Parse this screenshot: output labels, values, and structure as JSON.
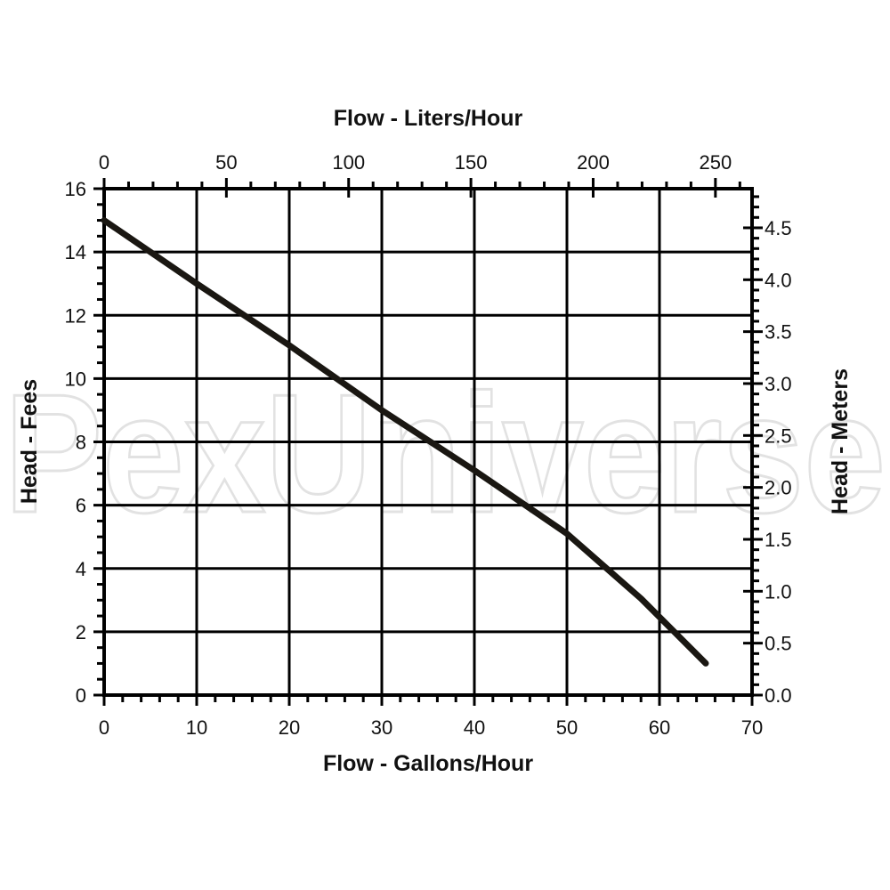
{
  "watermark": "PexUniverse",
  "chart_data": {
    "type": "line",
    "xlabel": "Flow - Gallons/Hour",
    "ylabel": "Head - Fees",
    "x2label": "Flow - Liters/Hour",
    "y2label": "Head - Meters",
    "xlim": [
      0,
      70
    ],
    "ylim": [
      0,
      16
    ],
    "x2lim": [
      0,
      265
    ],
    "y2lim": [
      0,
      4.877
    ],
    "xticks": [
      "0",
      "10",
      "20",
      "30",
      "40",
      "50",
      "60",
      "70"
    ],
    "yticks": [
      "0",
      "2",
      "4",
      "6",
      "8",
      "10",
      "12",
      "14",
      "16"
    ],
    "x2ticks": [
      "0",
      "50",
      "100",
      "150",
      "200",
      "250"
    ],
    "y2ticks": [
      "0.0",
      "0.5",
      "1.0",
      "1.5",
      "2.0",
      "2.5",
      "3.0",
      "3.5",
      "4.0",
      "4.5"
    ],
    "grid": true,
    "line_color": "#1a1712",
    "series": [
      {
        "x": [
          0,
          10,
          20,
          30,
          40,
          50,
          58,
          65
        ],
        "y": [
          15.0,
          13.0,
          11.05,
          9.0,
          7.1,
          5.1,
          3.05,
          1.0
        ]
      }
    ]
  }
}
